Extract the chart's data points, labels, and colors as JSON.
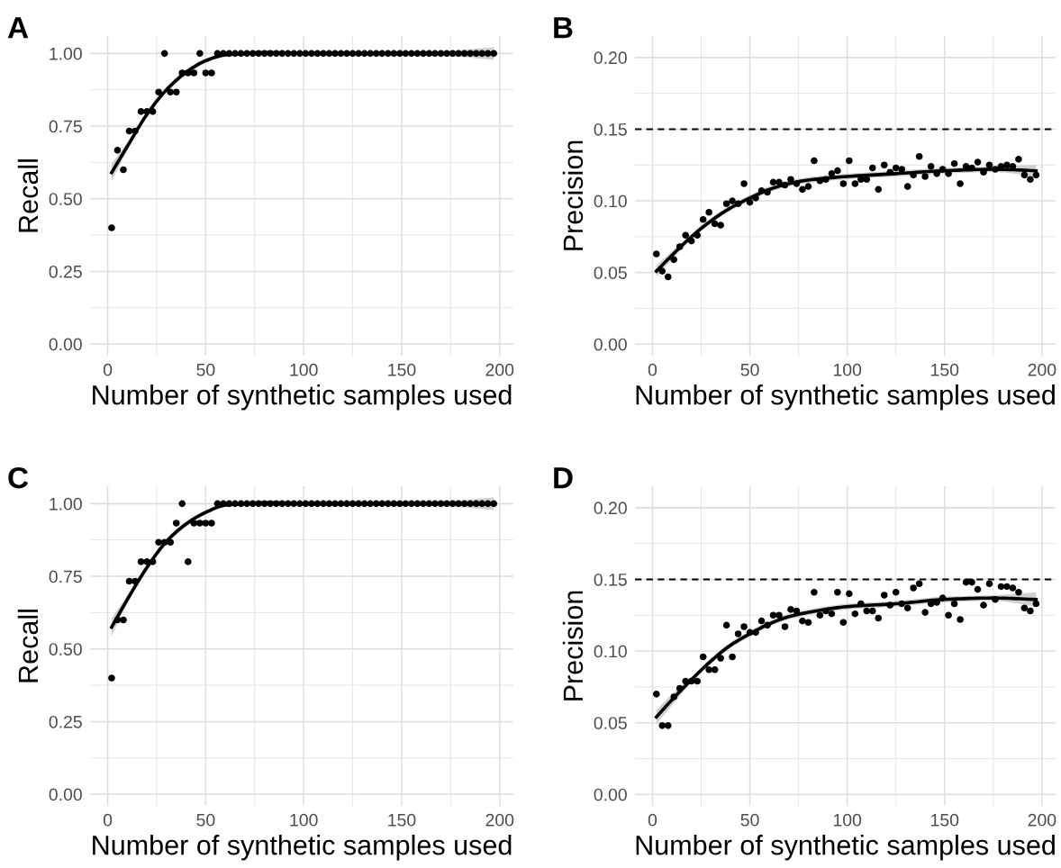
{
  "chart_data": [
    {
      "type": "scatter",
      "title": "A",
      "xlabel": "Number of synthetic samples used",
      "ylabel": "Recall",
      "xlim": [
        -9,
        207
      ],
      "xticks": [
        0,
        50,
        100,
        150,
        200
      ],
      "ylim": [
        -0.04,
        1.06
      ],
      "yticks": [
        {
          "value": 0,
          "label": "0.00"
        },
        {
          "value": 0.25,
          "label": "0.25"
        },
        {
          "value": 0.5,
          "label": "0.50"
        },
        {
          "value": 0.75,
          "label": "0.75"
        },
        {
          "value": 1,
          "label": "1.00"
        }
      ],
      "grid": true,
      "series": [
        {
          "marker": "circle",
          "color": "#000000",
          "x": [
            2,
            5,
            8,
            11,
            14,
            17,
            20,
            23,
            26,
            29,
            32,
            35,
            38,
            41,
            44,
            47,
            50,
            53,
            56,
            59,
            62,
            65,
            68,
            71,
            74,
            77,
            80,
            83,
            86,
            89,
            92,
            95,
            98,
            101,
            104,
            107,
            110,
            113,
            116,
            119,
            122,
            125,
            128,
            131,
            134,
            137,
            140,
            143,
            146,
            149,
            152,
            155,
            158,
            161,
            164,
            167,
            170,
            173,
            176,
            179,
            182,
            185,
            188,
            191,
            194,
            197
          ],
          "values": [
            0.4,
            0.667,
            0.6,
            0.733,
            0.733,
            0.8,
            0.8,
            0.8,
            0.867,
            1,
            0.867,
            0.867,
            0.933,
            0.933,
            0.933,
            1,
            0.933,
            0.933,
            1,
            1,
            1,
            1,
            1,
            1,
            1,
            1,
            1,
            1,
            1,
            1,
            1,
            1,
            1,
            1,
            1,
            1,
            1,
            1,
            1,
            1,
            1,
            1,
            1,
            1,
            1,
            1,
            1,
            1,
            1,
            1,
            1,
            1,
            1,
            1,
            1,
            1,
            1,
            1,
            1,
            1,
            1,
            1,
            1,
            1,
            1,
            1
          ]
        },
        {
          "type": "line",
          "color": "#000000",
          "x": [
            2,
            10,
            20,
            30,
            40,
            50,
            60,
            70,
            80,
            100,
            125,
            150,
            175,
            197
          ],
          "values": [
            0.59,
            0.68,
            0.79,
            0.875,
            0.935,
            0.975,
            0.995,
            1.0,
            1.003,
            1.0,
            1.0,
            1.0,
            1.0,
            1.0
          ],
          "lower": [
            0.56,
            0.665,
            0.78,
            0.865,
            0.925,
            0.967,
            0.988,
            0.993,
            0.996,
            0.994,
            0.994,
            0.994,
            0.99,
            0.978
          ],
          "upper": [
            0.62,
            0.695,
            0.8,
            0.885,
            0.945,
            0.983,
            1.002,
            1.007,
            1.01,
            1.006,
            1.006,
            1.006,
            1.01,
            1.022
          ]
        }
      ]
    },
    {
      "type": "scatter",
      "title": "B",
      "xlabel": "Number of synthetic samples used",
      "ylabel": "Precision",
      "xlim": [
        -9,
        207
      ],
      "xticks": [
        0,
        50,
        100,
        150,
        200
      ],
      "ylim": [
        -0.008,
        0.215
      ],
      "yticks": [
        {
          "value": 0,
          "label": "0.00"
        },
        {
          "value": 0.05,
          "label": "0.05"
        },
        {
          "value": 0.1,
          "label": "0.10"
        },
        {
          "value": 0.15,
          "label": "0.15"
        },
        {
          "value": 0.2,
          "label": "0.20"
        }
      ],
      "grid": true,
      "ref_lines": [
        {
          "axis": "y",
          "value": 0.15,
          "color": "#000000",
          "line_style": "dashed"
        }
      ],
      "series": [
        {
          "marker": "circle",
          "color": "#000000",
          "x": [
            2,
            5,
            8,
            11,
            14,
            17,
            20,
            23,
            26,
            29,
            32,
            35,
            38,
            41,
            44,
            47,
            50,
            53,
            56,
            59,
            62,
            65,
            68,
            71,
            74,
            77,
            80,
            83,
            86,
            89,
            92,
            95,
            98,
            101,
            104,
            107,
            110,
            113,
            116,
            119,
            122,
            125,
            128,
            131,
            134,
            137,
            140,
            143,
            146,
            149,
            152,
            155,
            158,
            161,
            164,
            167,
            170,
            173,
            176,
            179,
            182,
            185,
            188,
            191,
            194,
            197
          ],
          "values": [
            0.063,
            0.051,
            0.047,
            0.059,
            0.068,
            0.076,
            0.072,
            0.076,
            0.087,
            0.092,
            0.084,
            0.083,
            0.098,
            0.1,
            0.098,
            0.112,
            0.099,
            0.102,
            0.107,
            0.106,
            0.113,
            0.113,
            0.111,
            0.115,
            0.112,
            0.108,
            0.11,
            0.128,
            0.114,
            0.115,
            0.119,
            0.121,
            0.112,
            0.128,
            0.112,
            0.115,
            0.115,
            0.123,
            0.108,
            0.125,
            0.12,
            0.123,
            0.122,
            0.11,
            0.118,
            0.131,
            0.117,
            0.124,
            0.119,
            0.122,
            0.119,
            0.126,
            0.112,
            0.124,
            0.123,
            0.127,
            0.12,
            0.125,
            0.122,
            0.124,
            0.125,
            0.124,
            0.129,
            0.118,
            0.115,
            0.118
          ]
        },
        {
          "type": "line",
          "color": "#000000",
          "x": [
            2,
            10,
            20,
            30,
            40,
            50,
            60,
            70,
            80,
            100,
            125,
            150,
            175,
            197
          ],
          "values": [
            0.051,
            0.062,
            0.075,
            0.086,
            0.095,
            0.102,
            0.108,
            0.112,
            0.1145,
            0.117,
            0.119,
            0.121,
            0.122,
            0.121
          ],
          "lower": [
            0.047,
            0.059,
            0.073,
            0.084,
            0.093,
            0.1,
            0.106,
            0.11,
            0.1125,
            0.115,
            0.117,
            0.119,
            0.12,
            0.117
          ],
          "upper": [
            0.055,
            0.065,
            0.077,
            0.088,
            0.097,
            0.104,
            0.11,
            0.114,
            0.1165,
            0.119,
            0.121,
            0.123,
            0.124,
            0.125
          ]
        }
      ]
    },
    {
      "type": "scatter",
      "title": "C",
      "xlabel": "Number of synthetic samples used",
      "ylabel": "Recall",
      "xlim": [
        -9,
        207
      ],
      "xticks": [
        0,
        50,
        100,
        150,
        200
      ],
      "ylim": [
        -0.04,
        1.06
      ],
      "yticks": [
        {
          "value": 0,
          "label": "0.00"
        },
        {
          "value": 0.25,
          "label": "0.25"
        },
        {
          "value": 0.5,
          "label": "0.50"
        },
        {
          "value": 0.75,
          "label": "0.75"
        },
        {
          "value": 1,
          "label": "1.00"
        }
      ],
      "grid": true,
      "series": [
        {
          "marker": "circle",
          "color": "#000000",
          "x": [
            2,
            5,
            8,
            11,
            14,
            17,
            20,
            23,
            26,
            29,
            32,
            35,
            38,
            41,
            44,
            47,
            50,
            53,
            56,
            59,
            62,
            65,
            68,
            71,
            74,
            77,
            80,
            83,
            86,
            89,
            92,
            95,
            98,
            101,
            104,
            107,
            110,
            113,
            116,
            119,
            122,
            125,
            128,
            131,
            134,
            137,
            140,
            143,
            146,
            149,
            152,
            155,
            158,
            161,
            164,
            167,
            170,
            173,
            176,
            179,
            182,
            185,
            188,
            191,
            194,
            197
          ],
          "values": [
            0.4,
            0.6,
            0.6,
            0.733,
            0.733,
            0.8,
            0.8,
            0.8,
            0.867,
            0.867,
            0.867,
            0.933,
            1,
            0.8,
            0.933,
            0.933,
            0.933,
            0.933,
            1,
            1,
            1,
            1,
            1,
            1,
            1,
            1,
            1,
            1,
            1,
            1,
            1,
            1,
            1,
            1,
            1,
            1,
            1,
            1,
            1,
            1,
            1,
            1,
            1,
            1,
            1,
            1,
            1,
            1,
            1,
            1,
            1,
            1,
            1,
            1,
            1,
            1,
            1,
            1,
            1,
            1,
            1,
            1,
            1,
            1,
            1,
            1
          ]
        },
        {
          "type": "line",
          "color": "#000000",
          "x": [
            2,
            10,
            20,
            30,
            40,
            50,
            60,
            70,
            80,
            100,
            125,
            150,
            175,
            197
          ],
          "values": [
            0.575,
            0.67,
            0.78,
            0.87,
            0.93,
            0.97,
            0.995,
            1.0,
            1.003,
            1.0,
            1.0,
            1.0,
            1.0,
            1.0
          ],
          "lower": [
            0.545,
            0.655,
            0.77,
            0.86,
            0.92,
            0.962,
            0.988,
            0.993,
            0.996,
            0.994,
            0.994,
            0.994,
            0.99,
            0.978
          ],
          "upper": [
            0.605,
            0.685,
            0.79,
            0.88,
            0.94,
            0.978,
            1.002,
            1.007,
            1.01,
            1.006,
            1.006,
            1.006,
            1.01,
            1.022
          ]
        }
      ]
    },
    {
      "type": "scatter",
      "title": "D",
      "xlabel": "Number of synthetic samples used",
      "ylabel": "Precision",
      "xlim": [
        -9,
        207
      ],
      "xticks": [
        0,
        50,
        100,
        150,
        200
      ],
      "ylim": [
        -0.008,
        0.215
      ],
      "yticks": [
        {
          "value": 0,
          "label": "0.00"
        },
        {
          "value": 0.05,
          "label": "0.05"
        },
        {
          "value": 0.1,
          "label": "0.10"
        },
        {
          "value": 0.15,
          "label": "0.15"
        },
        {
          "value": 0.2,
          "label": "0.20"
        }
      ],
      "grid": true,
      "ref_lines": [
        {
          "axis": "y",
          "value": 0.15,
          "color": "#000000",
          "line_style": "dashed"
        }
      ],
      "series": [
        {
          "marker": "circle",
          "color": "#000000",
          "x": [
            2,
            5,
            8,
            11,
            14,
            17,
            20,
            23,
            26,
            29,
            32,
            35,
            38,
            41,
            44,
            47,
            50,
            53,
            56,
            59,
            62,
            65,
            68,
            71,
            74,
            77,
            80,
            83,
            86,
            89,
            92,
            95,
            98,
            101,
            104,
            107,
            110,
            113,
            116,
            119,
            122,
            125,
            128,
            131,
            134,
            137,
            140,
            143,
            146,
            149,
            152,
            155,
            158,
            161,
            164,
            167,
            170,
            173,
            176,
            179,
            182,
            185,
            188,
            191,
            194,
            197
          ],
          "values": [
            0.07,
            0.048,
            0.048,
            0.068,
            0.074,
            0.079,
            0.079,
            0.079,
            0.096,
            0.087,
            0.087,
            0.095,
            0.118,
            0.096,
            0.112,
            0.117,
            0.113,
            0.113,
            0.121,
            0.118,
            0.125,
            0.125,
            0.117,
            0.129,
            0.128,
            0.121,
            0.12,
            0.141,
            0.125,
            0.128,
            0.126,
            0.141,
            0.12,
            0.14,
            0.126,
            0.133,
            0.128,
            0.128,
            0.123,
            0.139,
            0.132,
            0.141,
            0.133,
            0.13,
            0.144,
            0.147,
            0.127,
            0.133,
            0.134,
            0.137,
            0.125,
            0.133,
            0.122,
            0.148,
            0.148,
            0.143,
            0.132,
            0.147,
            0.136,
            0.145,
            0.145,
            0.144,
            0.141,
            0.13,
            0.128,
            0.133
          ]
        },
        {
          "type": "line",
          "color": "#000000",
          "x": [
            2,
            10,
            20,
            30,
            40,
            50,
            60,
            70,
            80,
            100,
            125,
            150,
            175,
            197
          ],
          "values": [
            0.054,
            0.066,
            0.08,
            0.093,
            0.104,
            0.112,
            0.119,
            0.124,
            0.127,
            0.131,
            0.133,
            0.136,
            0.137,
            0.136
          ],
          "lower": [
            0.049,
            0.062,
            0.078,
            0.091,
            0.102,
            0.11,
            0.117,
            0.122,
            0.125,
            0.129,
            0.131,
            0.134,
            0.135,
            0.131
          ],
          "upper": [
            0.059,
            0.07,
            0.082,
            0.095,
            0.106,
            0.114,
            0.121,
            0.126,
            0.129,
            0.133,
            0.135,
            0.138,
            0.139,
            0.141
          ]
        }
      ]
    }
  ]
}
